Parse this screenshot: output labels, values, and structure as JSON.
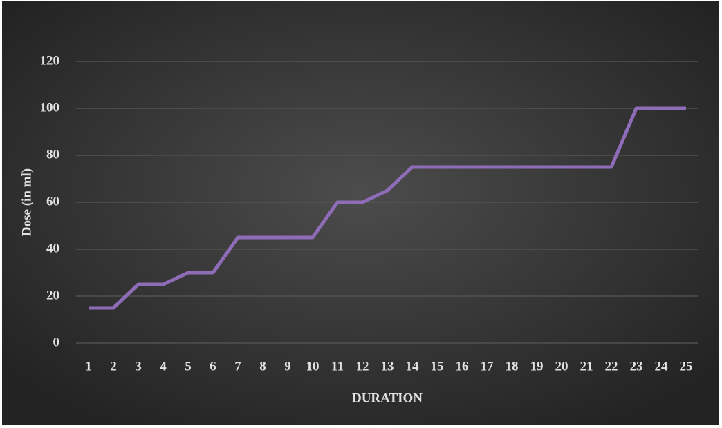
{
  "chart_data": {
    "type": "line",
    "x_label": "DURATION",
    "y_label": "Dose (in ml)",
    "categories": [
      "1",
      "2",
      "3",
      "4",
      "5",
      "6",
      "7",
      "8",
      "9",
      "10",
      "11",
      "12",
      "13",
      "14",
      "15",
      "16",
      "17",
      "18",
      "19",
      "20",
      "21",
      "22",
      "23",
      "24",
      "25"
    ],
    "values": [
      15,
      15,
      25,
      25,
      30,
      30,
      45,
      45,
      45,
      45,
      60,
      60,
      65,
      75,
      75,
      75,
      75,
      75,
      75,
      75,
      75,
      75,
      100,
      100,
      100
    ],
    "color": "#8f6cb8",
    "ylim": [
      0,
      120
    ],
    "yticks": [
      0,
      20,
      40,
      60,
      80,
      100,
      120
    ],
    "grid": true
  }
}
